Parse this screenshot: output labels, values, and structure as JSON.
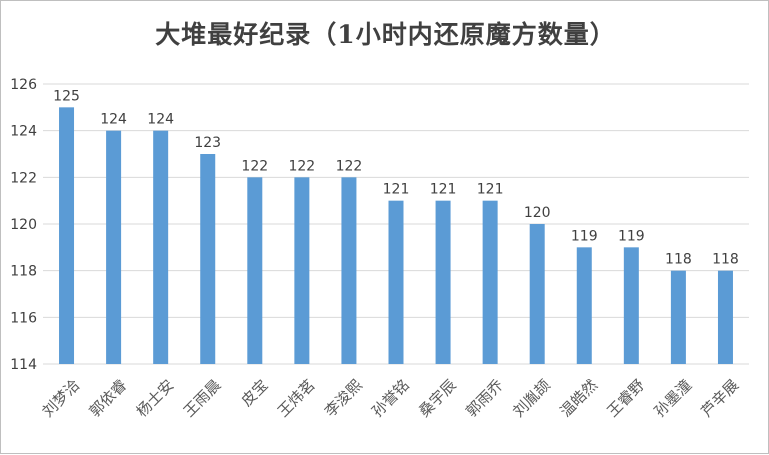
{
  "chart_data": {
    "type": "bar",
    "title": "大堆最好纪录（1小时内还原魔方数量）",
    "categories": [
      "刘梦洽",
      "郭依睿",
      "杨士安",
      "王雨晨",
      "皮宝",
      "王炜茗",
      "李浚熙",
      "孙誉铭",
      "桑宇辰",
      "郭雨乔",
      "刘胤颉",
      "温皓然",
      "王睿野",
      "孙墨潼",
      "芦辛展"
    ],
    "values": [
      125,
      124,
      124,
      123,
      122,
      122,
      122,
      121,
      121,
      121,
      120,
      119,
      119,
      118,
      118
    ],
    "ylim": [
      114,
      126
    ],
    "yticks": [
      114,
      116,
      118,
      120,
      122,
      124,
      126
    ],
    "xlabel": "",
    "ylabel": "",
    "grid": true,
    "bar_color": "#5b9bd5",
    "data_labels": true
  }
}
